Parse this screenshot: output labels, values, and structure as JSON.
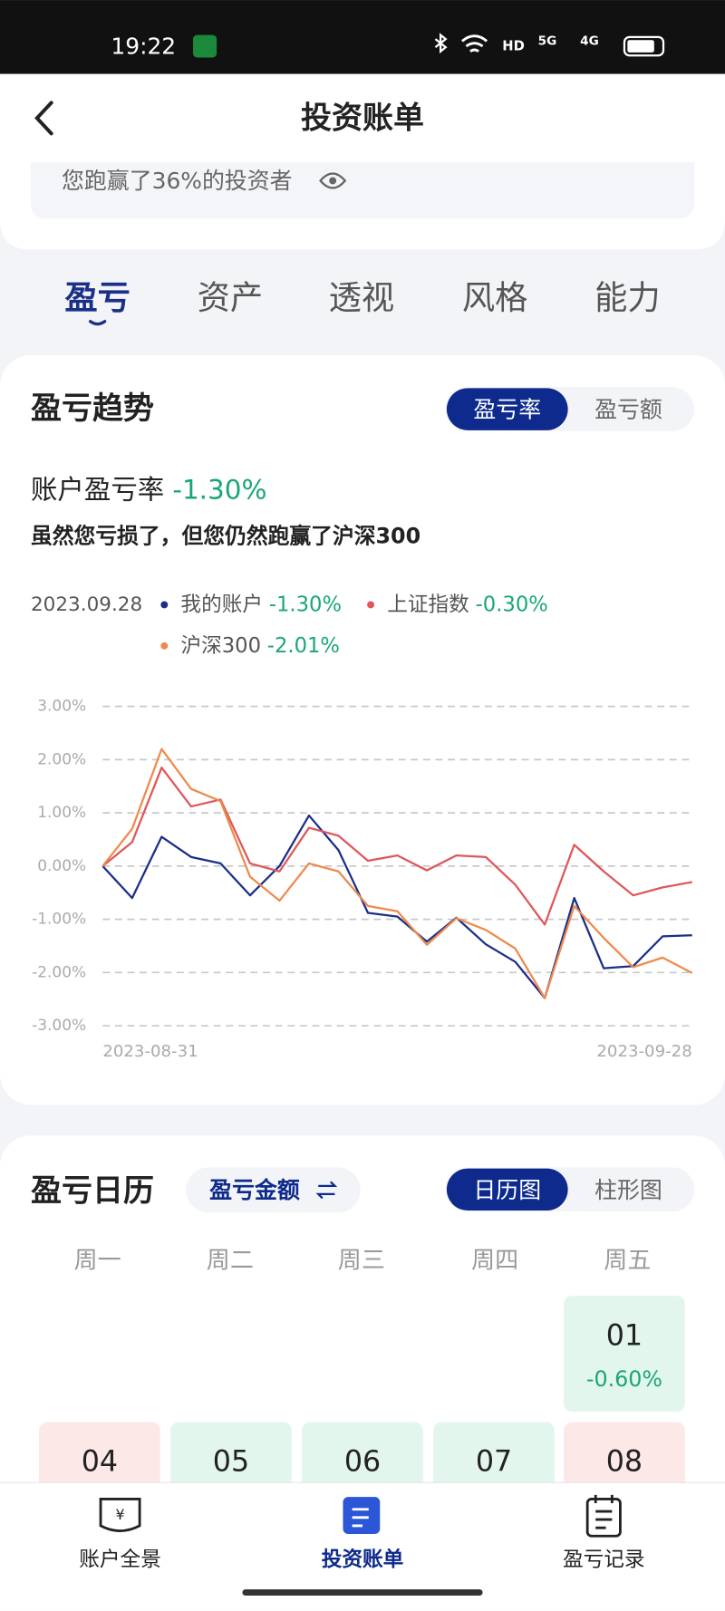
{
  "status_bar": {
    "time": "19:22",
    "icons": [
      "HD",
      "5G",
      "4G"
    ]
  },
  "header": {
    "title": "投资账单"
  },
  "banner": {
    "text": "您跑赢了36%的投资者"
  },
  "tabs": [
    "盈亏",
    "资产",
    "透视",
    "风格",
    "能力"
  ],
  "trend": {
    "title": "盈亏趋势",
    "toggle": [
      "盈亏率",
      "盈亏额"
    ],
    "summary_label": "账户盈亏率",
    "summary_value": "-1.30%",
    "message": "虽然您亏损了，但您仍然跑赢了沪深300",
    "legend_date": "2023.09.28",
    "chart_data": {
      "type": "line",
      "categories": [
        "2023-08-31",
        null,
        null,
        null,
        null,
        null,
        null,
        null,
        null,
        null,
        null,
        null,
        null,
        null,
        null,
        null,
        null,
        null,
        null,
        null,
        "2023-09-28"
      ],
      "ylim": [
        -3,
        3
      ],
      "yticks": [
        {
          "value": 3,
          "label": "3.00%"
        },
        {
          "value": 2,
          "label": "2.00%"
        },
        {
          "value": 1,
          "label": "1.00%"
        },
        {
          "value": 0,
          "label": "0.00%"
        },
        {
          "value": -1,
          "label": "-1.00%"
        },
        {
          "value": -2,
          "label": "-2.00%"
        },
        {
          "value": -3,
          "label": "-3.00%"
        }
      ],
      "grid": true,
      "series": [
        {
          "name": "我的账户",
          "color": "#1b2f88",
          "value_label": "-1.30%",
          "values": [
            0,
            -0.6,
            0.55,
            0.17,
            0.05,
            -0.55,
            0,
            0.95,
            0.3,
            -0.88,
            -0.95,
            -1.42,
            -0.97,
            -1.47,
            -1.8,
            -2.48,
            -0.6,
            -1.92,
            -1.88,
            -1.32,
            -1.3
          ]
        },
        {
          "name": "上证指数",
          "color": "#e0575a",
          "value_label": "-0.30%",
          "values": [
            0,
            0.45,
            1.85,
            1.12,
            1.25,
            0.05,
            -0.1,
            0.72,
            0.57,
            0.1,
            0.2,
            -0.08,
            0.2,
            0.17,
            -0.35,
            -1.1,
            0.4,
            -0.1,
            -0.55,
            -0.4,
            -0.3
          ]
        },
        {
          "name": "沪深300",
          "color": "#ee8a4c",
          "value_label": "-2.01%",
          "values": [
            0,
            0.7,
            2.2,
            1.45,
            1.22,
            -0.2,
            -0.65,
            0.05,
            -0.1,
            -0.75,
            -0.85,
            -1.48,
            -0.98,
            -1.2,
            -1.55,
            -2.48,
            -0.75,
            -1.35,
            -1.9,
            -1.72,
            -2.01
          ]
        }
      ]
    }
  },
  "calendar": {
    "title": "盈亏日历",
    "mode": "盈亏金额",
    "toggle": [
      "日历图",
      "柱形图"
    ],
    "weekdays": [
      "周一",
      "周二",
      "周三",
      "周四",
      "周五"
    ],
    "days": [
      {
        "day": "01",
        "value": "-0.60%",
        "color": "#e3f6ee",
        "col": 4,
        "row": 0
      },
      {
        "day": "04",
        "color": "#fde8e8",
        "col": 0,
        "row": 1
      },
      {
        "day": "05",
        "color": "#e3f6ee",
        "col": 1,
        "row": 1
      },
      {
        "day": "06",
        "color": "#e3f6ee",
        "col": 2,
        "row": 1
      },
      {
        "day": "07",
        "color": "#e3f6ee",
        "col": 3,
        "row": 1
      },
      {
        "day": "08",
        "color": "#fde8e8",
        "col": 4,
        "row": 1
      }
    ]
  },
  "bottom_nav": [
    "账户全景",
    "投资账单",
    "盈亏记录"
  ]
}
